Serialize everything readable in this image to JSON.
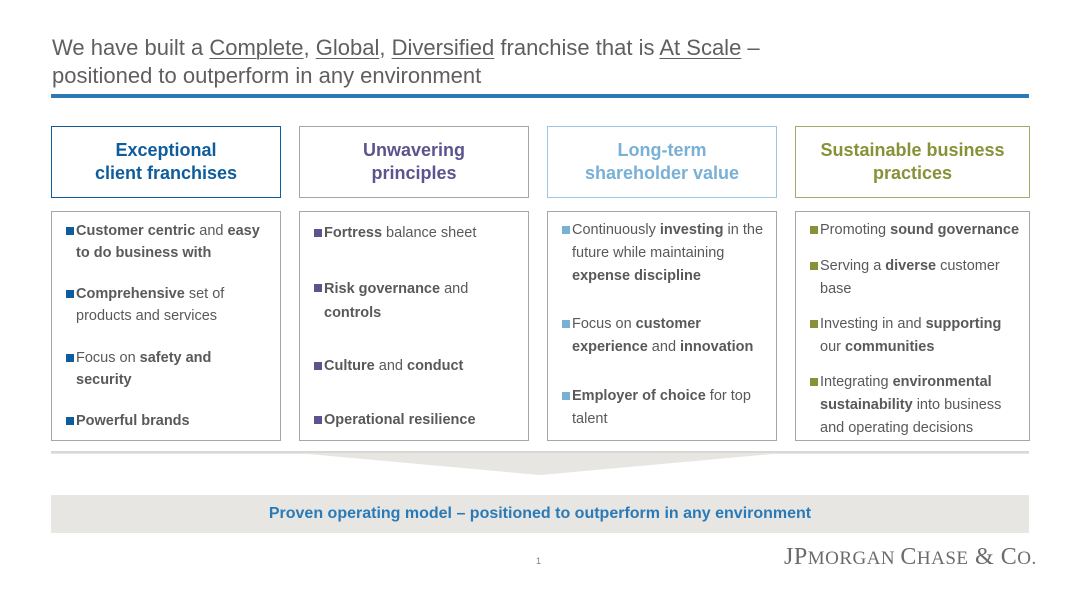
{
  "title": {
    "part1": "We have built a ",
    "complete": "Complete",
    "comma1": ", ",
    "global": "Global",
    "comma2": ", ",
    "diversified": "Diversified",
    "part2": " franchise that is ",
    "at_scale": "At Scale",
    "part3": " –",
    "line2": "positioned to outperform in any environment"
  },
  "colors": {
    "blue": "#0f5c9c",
    "purple": "#5b548f",
    "light_blue": "#79b0d6",
    "olive": "#889137",
    "accent_rule": "#2a7ab8"
  },
  "columns": [
    {
      "heading_line1": "Exceptional",
      "heading_line2": "client franchises",
      "items": [
        {
          "b1": "Customer centric",
          "t1": " and ",
          "b2": "easy",
          "t2": "",
          "line2_b": "to do business with",
          "line2_t": ""
        },
        {
          "b1": "Comprehensive",
          "t1": " set of",
          "b2": "",
          "t2": "",
          "line2_b": "",
          "line2_t": "products and services"
        },
        {
          "b1": "",
          "t1": "Focus on ",
          "b2": "safety and",
          "t2": "",
          "line2_b": "security",
          "line2_t": ""
        },
        {
          "b1": "Powerful brands",
          "t1": "",
          "b2": "",
          "t2": "",
          "line2_b": "",
          "line2_t": ""
        }
      ]
    },
    {
      "heading_line1": "Unwavering",
      "heading_line2": "principles",
      "items": [
        {
          "b1": "Fortress",
          "t1": " balance sheet",
          "b2": "",
          "t2": "",
          "line2_b": "",
          "line2_t": ""
        },
        {
          "b1": "Risk governance",
          "t1": " and",
          "b2": "",
          "t2": "",
          "line2_b": "controls",
          "line2_t": ""
        },
        {
          "b1": "Culture",
          "t1": " and ",
          "b2": "conduct",
          "t2": "",
          "line2_b": "",
          "line2_t": ""
        },
        {
          "b1": "Operational resilience",
          "t1": "",
          "b2": "",
          "t2": "",
          "line2_b": "",
          "line2_t": ""
        }
      ]
    },
    {
      "heading_line1": "Long-term",
      "heading_line2": "shareholder value",
      "items": [
        {
          "t0": "Continuously ",
          "b1": "investing",
          "t1": " in the",
          "line2_t": "future while maintaining",
          "line3_b": "expense discipline"
        },
        {
          "t0": "Focus on ",
          "b1": "customer",
          "t1": "",
          "line2_b": "experience",
          "line2_t": " and ",
          "line2_b2": "innovation"
        },
        {
          "t0": "",
          "b1": "Employer of choice",
          "t1": " for top",
          "line2_t": "talent"
        }
      ]
    },
    {
      "heading_line1": "Sustainable business",
      "heading_line2": "practices",
      "items": [
        {
          "t0": "Promoting ",
          "b1": "sound governance",
          "t1": ""
        },
        {
          "t0": "Serving a ",
          "b1": "diverse",
          "t1": " customer",
          "line2_t": "base"
        },
        {
          "t0": "Investing in and ",
          "b1": "supporting",
          "t1": "",
          "line2_t": "our ",
          "line2_b": "communities"
        },
        {
          "t0": "Integrating ",
          "b1": "environmental",
          "t1": "",
          "line2_b": "sustainability",
          "line2_t": " into business",
          "line3_t": "and operating decisions"
        }
      ]
    }
  ],
  "banner": "Proven operating model – positioned to outperform in any environment",
  "page_number": "1",
  "logo": {
    "j": "J",
    "p": "P",
    "organ": "MORGAN",
    "c": "C",
    "hase": "HASE",
    "amp": " & ",
    "co_c": "C",
    "co_o": "O."
  }
}
